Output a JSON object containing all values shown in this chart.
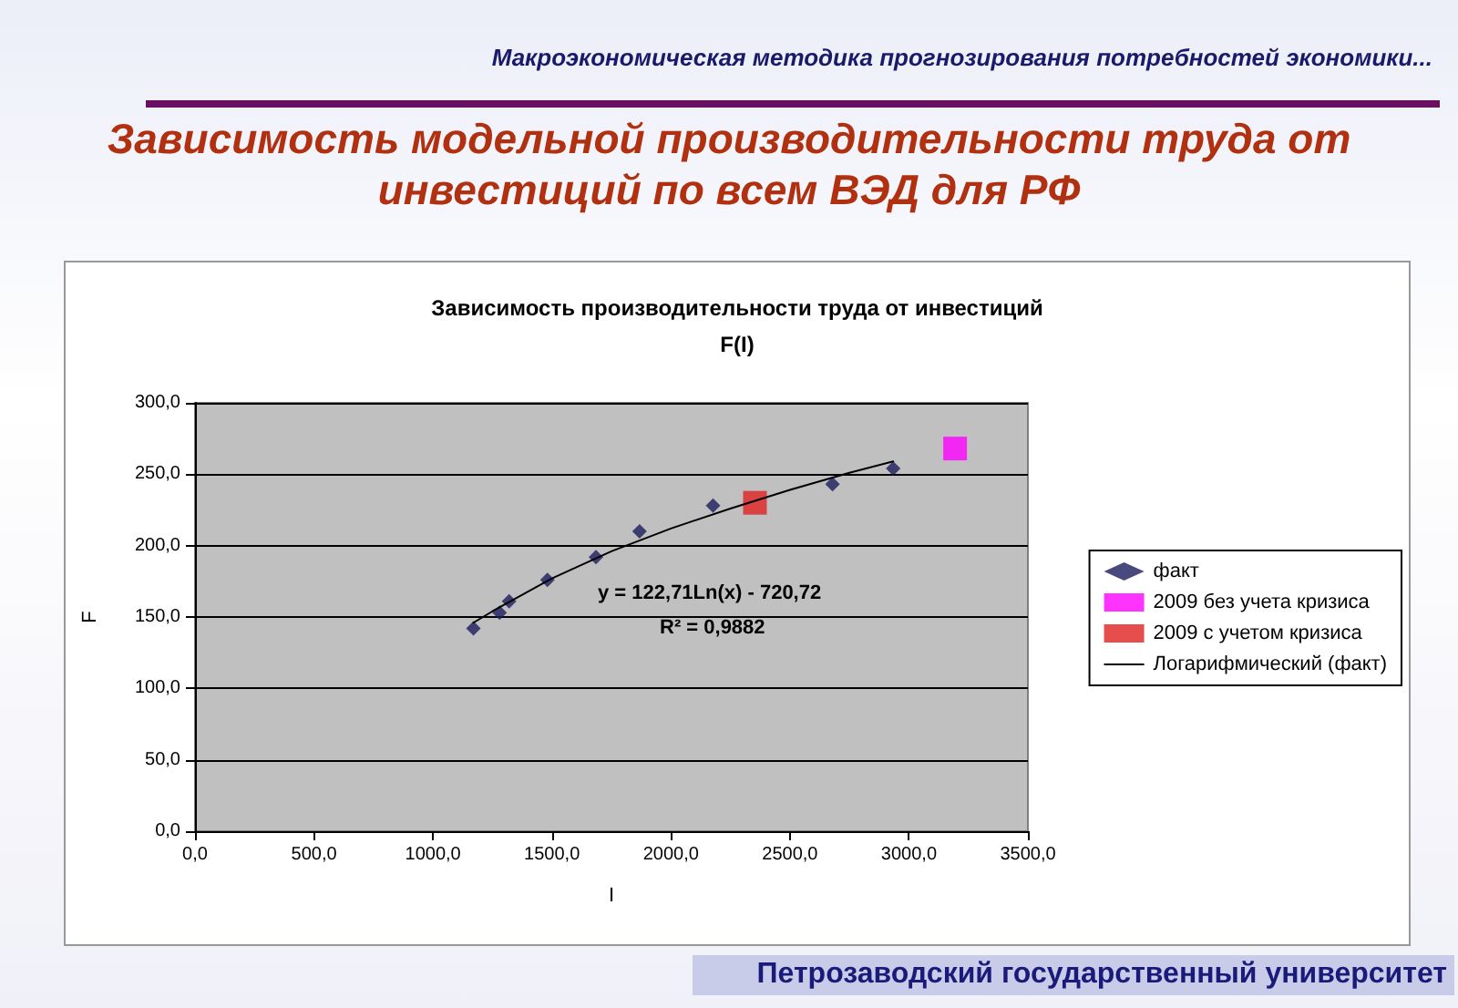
{
  "chart_data": {
    "type": "scatter",
    "title": "Зависимость модельной производительности труда от инвестиций по всем ВЭД для РФ",
    "subtitle": "Зависимость производительности труда от инвестиций\nF(I)",
    "xlabel": "I",
    "ylabel": "F",
    "annotations": [
      "Макроэкономическая методика прогнозирования потребностей экономики...",
      "y = 122,71Ln(x) - 720,72",
      "R² = 0,9882",
      "Петрозаводский государственный университет"
    ],
    "series": [
      {
        "name": "факт",
        "marker": "diamond",
        "color": "#1c1c5c",
        "x": [
          1170,
          1280,
          1320,
          1481,
          1685,
          1868,
          2177,
          2679,
          2934
        ],
        "values": [
          142,
          153,
          161,
          176,
          192,
          210,
          228,
          243,
          254
        ]
      },
      {
        "name": "2009 без учета кризиса",
        "marker": "square",
        "color": "#ff00ff",
        "x": [
          3194
        ],
        "values": [
          268
        ]
      },
      {
        "name": "2009 с учетом кризиса",
        "marker": "square",
        "color": "#e02020",
        "x": [
          2353
        ],
        "values": [
          230
        ]
      },
      {
        "name": "Логарифмический (факт)",
        "type": "line",
        "marker": "none",
        "color": "#000000",
        "x": [
          1170,
          1250,
          1500,
          1750,
          2000,
          2250,
          2500,
          2750,
          2934
        ],
        "values": [
          146,
          154,
          177,
          196,
          212,
          226,
          239,
          251,
          259
        ]
      }
    ],
    "xlim": [
      0,
      3500
    ],
    "xticks": [
      {
        "value": 0,
        "label": "0,0"
      },
      {
        "value": 500,
        "label": "500,0"
      },
      {
        "value": 1000,
        "label": "1000,0"
      },
      {
        "value": 1500,
        "label": "1500,0"
      },
      {
        "value": 2000,
        "label": "2000,0"
      },
      {
        "value": 2500,
        "label": "2500,0"
      },
      {
        "value": 3000,
        "label": "3000,0"
      },
      {
        "value": 3500,
        "label": "3500,0"
      }
    ],
    "ylim": [
      0,
      300
    ],
    "yticks": [
      {
        "value": 0,
        "label": "0,0"
      },
      {
        "value": 50,
        "label": "50,0"
      },
      {
        "value": 100,
        "label": "100,0"
      },
      {
        "value": 150,
        "label": "150,0"
      },
      {
        "value": 200,
        "label": "200,0"
      },
      {
        "value": 250,
        "label": "250,0"
      },
      {
        "value": 300,
        "label": "300,0"
      }
    ],
    "grid": "y",
    "legend": "right"
  }
}
